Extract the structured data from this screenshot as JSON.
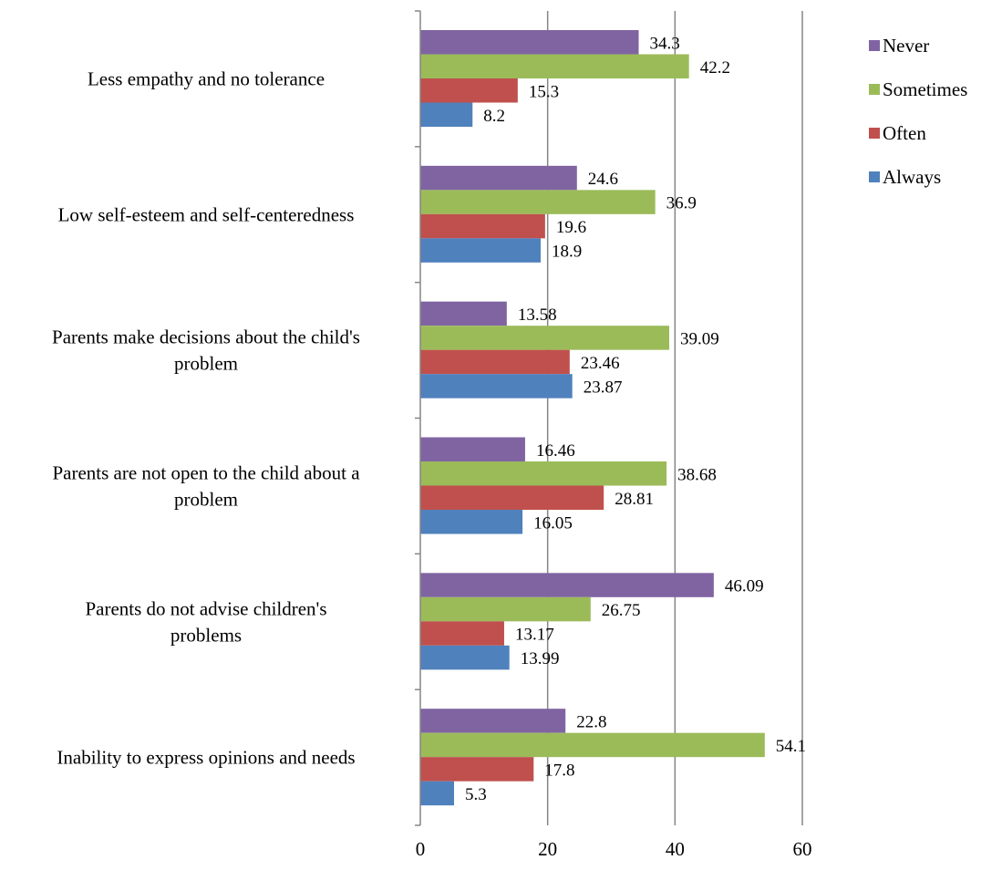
{
  "chart_data": {
    "type": "bar",
    "orientation": "horizontal",
    "title": "",
    "xlabel": "",
    "ylabel": "",
    "xlim": [
      0,
      60
    ],
    "x_ticks": [
      0,
      20,
      40,
      60
    ],
    "grid": "vertical",
    "legend_position": "right",
    "categories": [
      "Less empathy and no tolerance",
      "Low self-esteem and self-centeredness",
      "Parents make decisions about the child's problem",
      "Parents are not open to the child about a problem",
      "Parents do not advise children's problems",
      "Inability to express opinions and needs"
    ],
    "category_lines": [
      [
        "Less empathy and no tolerance"
      ],
      [
        "Low self-esteem and self-centeredness"
      ],
      [
        "Parents make decisions about the child's",
        "problem"
      ],
      [
        "Parents are not open to the child about a",
        "problem"
      ],
      [
        "Parents do not advise children's",
        "problems"
      ],
      [
        "Inability to express opinions and needs"
      ]
    ],
    "series": [
      {
        "name": "Never",
        "color": "#8064A2",
        "values": [
          34.3,
          24.6,
          13.58,
          16.46,
          46.09,
          22.8
        ],
        "labels": [
          "34.3",
          "24.6",
          "13.58",
          "16.46",
          "46.09",
          "22.8"
        ]
      },
      {
        "name": "Sometimes",
        "color": "#9BBB59",
        "values": [
          42.2,
          36.9,
          39.09,
          38.68,
          26.75,
          54.1
        ],
        "labels": [
          "42.2",
          "36.9",
          "39.09",
          "38.68",
          "26.75",
          "54.1"
        ]
      },
      {
        "name": "Often",
        "color": "#C0504D",
        "values": [
          15.3,
          19.6,
          23.46,
          28.81,
          13.17,
          17.8
        ],
        "labels": [
          "15.3",
          "19.6",
          "23.46",
          "28.81",
          "13.17",
          "17.8"
        ]
      },
      {
        "name": "Always",
        "color": "#4F81BD",
        "values": [
          8.2,
          18.9,
          23.87,
          16.05,
          13.99,
          5.3
        ],
        "labels": [
          "8.2",
          "18.9",
          "23.87",
          "16.05",
          "13.99",
          "5.3"
        ]
      }
    ]
  }
}
